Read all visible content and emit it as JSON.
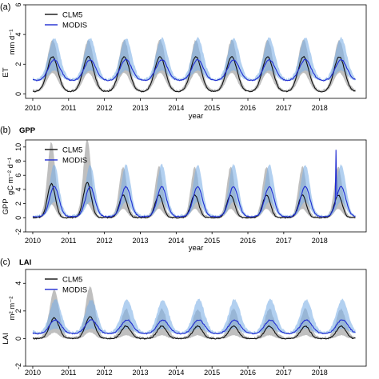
{
  "colors": {
    "clm5_line": "#111111",
    "clm5_band": "#8a8a8a",
    "modis_line": "#1f2bd1",
    "modis_band": "#7fb0e6"
  },
  "chart_data": [
    {
      "type": "line",
      "panel_label": "(a)",
      "title": "",
      "xlabel": "year",
      "ylabel_var": "ET",
      "ylabel_unit": "mm d⁻¹",
      "ylim": [
        -0.3,
        6
      ],
      "yticks": [
        0,
        2,
        4,
        6
      ],
      "xlim": [
        2009.8,
        2019.3
      ],
      "xticks": [
        2010,
        2011,
        2012,
        2013,
        2014,
        2015,
        2016,
        2017,
        2018
      ],
      "legend": {
        "placement": "top-left",
        "entries": [
          "CLM5",
          "MODIS"
        ]
      },
      "series": [
        {
          "name": "CLM5",
          "style": "line+band",
          "baseline": 0.15,
          "peak": 2.5,
          "peak_phase": 0.55,
          "width": 0.15,
          "band_low_factor": 0.55,
          "band_high_factor": 1.45
        },
        {
          "name": "MODIS",
          "style": "line+band",
          "baseline": 0.9,
          "peak": 2.3,
          "peak_phase": 0.6,
          "width": 0.16,
          "band_low_factor": 0.5,
          "band_high_factor": 2.0
        }
      ]
    },
    {
      "type": "line",
      "panel_label": "(b)",
      "title": "GPP",
      "xlabel": "year",
      "ylabel_var": "GPP",
      "ylabel_unit": "gC m⁻² d⁻¹",
      "ylim": [
        -2,
        11
      ],
      "yticks": [
        -2,
        0,
        2,
        4,
        6,
        8,
        10
      ],
      "xlim": [
        2009.8,
        2019.3
      ],
      "xticks": [
        2010,
        2011,
        2012,
        2013,
        2014,
        2015,
        2016,
        2017,
        2018
      ],
      "legend": {
        "placement": "top-left",
        "entries": [
          "CLM5",
          "MODIS"
        ]
      },
      "series": [
        {
          "name": "CLM5",
          "style": "line+band",
          "baseline": 0.0,
          "peak": 3.2,
          "peak_phase": 0.52,
          "width": 0.11,
          "band_low_factor": 0.4,
          "band_high_factor": 2.2,
          "first_years_peak": [
            4.8,
            5.0
          ]
        },
        {
          "name": "MODIS",
          "style": "line+band",
          "baseline": 0.15,
          "peak": 4.4,
          "peak_phase": 0.6,
          "width": 0.13,
          "band_low_factor": 0.5,
          "band_high_factor": 1.7,
          "spike": {
            "x": 2018.45,
            "y": 9.6
          }
        }
      ]
    },
    {
      "type": "line",
      "panel_label": "(c)",
      "title": "LAI",
      "xlabel": "",
      "ylabel_var": "LAI",
      "ylabel_unit": "m² m⁻²",
      "ylim": [
        -2,
        5
      ],
      "yticks": [
        -2,
        0,
        2,
        4
      ],
      "xlim": [
        2009.8,
        2019.3
      ],
      "xticks": [
        2010,
        2011,
        2012,
        2013,
        2014,
        2015,
        2016,
        2017,
        2018
      ],
      "legend": {
        "placement": "top-left",
        "entries": [
          "CLM5",
          "MODIS"
        ]
      },
      "series": [
        {
          "name": "CLM5",
          "style": "line+band",
          "baseline": 0.0,
          "peak": 0.9,
          "peak_phase": 0.6,
          "width": 0.13,
          "band_low_factor": 0.3,
          "band_high_factor": 2.3,
          "first_years_peak": [
            1.5,
            1.6
          ]
        },
        {
          "name": "MODIS",
          "style": "line+band",
          "baseline": 0.35,
          "peak": 1.35,
          "peak_phase": 0.63,
          "width": 0.16,
          "band_low_factor": 0.4,
          "band_high_factor": 2.4
        }
      ]
    }
  ]
}
